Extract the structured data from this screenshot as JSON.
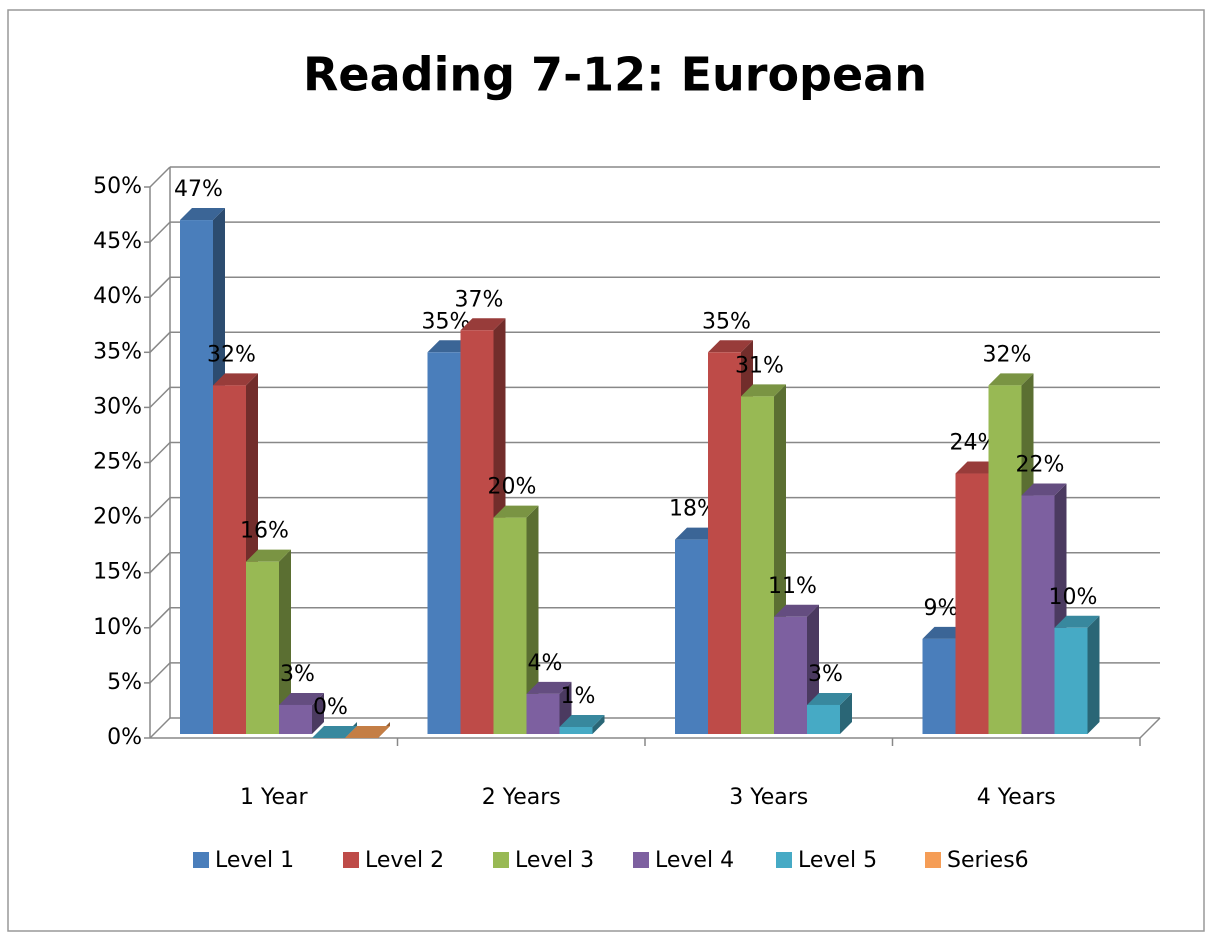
{
  "chart_data": {
    "type": "bar3d",
    "title": "Reading 7-12: European",
    "categories": [
      "1 Year",
      "2 Years",
      "3 Years",
      "4 Years"
    ],
    "series": [
      {
        "name": "Level 1",
        "color": "#4a7ebb",
        "values": [
          47,
          35,
          18,
          9
        ],
        "value_labels": [
          "47%",
          "35%",
          "18%",
          "9%"
        ]
      },
      {
        "name": "Level 2",
        "color": "#be4b48",
        "values": [
          32,
          37,
          35,
          24
        ],
        "value_labels": [
          "32%",
          "37%",
          "35%",
          "24%"
        ]
      },
      {
        "name": "Level 3",
        "color": "#98b954",
        "values": [
          16,
          20,
          31,
          32
        ],
        "value_labels": [
          "16%",
          "20%",
          "31%",
          "32%"
        ]
      },
      {
        "name": "Level 4",
        "color": "#7d60a0",
        "values": [
          3,
          4,
          11,
          22
        ],
        "value_labels": [
          "3%",
          "4%",
          "11%",
          "22%"
        ]
      },
      {
        "name": "Level 5",
        "color": "#46aac5",
        "values": [
          0,
          1,
          3,
          10
        ],
        "value_labels": [
          "0%",
          "1%",
          "3%",
          "10%"
        ]
      },
      {
        "name": "Series6",
        "color": "#f59d56",
        "values": [
          0,
          null,
          null,
          null
        ]
      }
    ],
    "ylim": [
      0,
      50
    ],
    "yticks": [
      {
        "value": 0,
        "label": "0%"
      },
      {
        "value": 5,
        "label": "5%"
      },
      {
        "value": 10,
        "label": "10%"
      },
      {
        "value": 15,
        "label": "15%"
      },
      {
        "value": 20,
        "label": "20%"
      },
      {
        "value": 25,
        "label": "25%"
      },
      {
        "value": 30,
        "label": "30%"
      },
      {
        "value": 35,
        "label": "35%"
      },
      {
        "value": 40,
        "label": "40%"
      },
      {
        "value": 45,
        "label": "45%"
      },
      {
        "value": 50,
        "label": "50%"
      }
    ],
    "grid": true,
    "legend": "bottom"
  }
}
